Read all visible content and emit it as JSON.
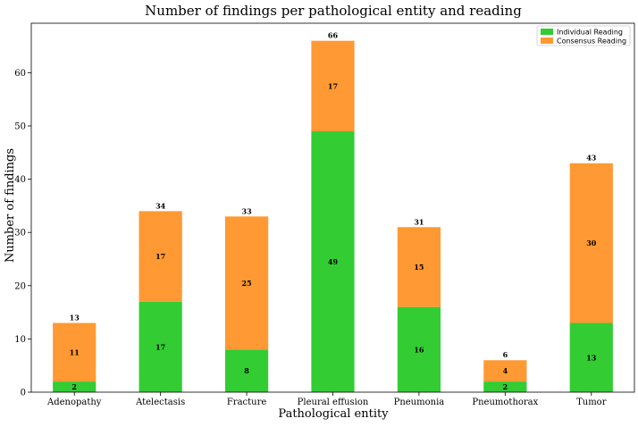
{
  "chart_data": {
    "type": "bar",
    "stacked": true,
    "title": "Number of findings per pathological entity and reading",
    "xlabel": "Pathological entity",
    "ylabel": "Number of findings",
    "categories": [
      "Adenopathy",
      "Atelectasis",
      "Fracture",
      "Pleural effusion",
      "Pneumonia",
      "Pneumothorax",
      "Tumor"
    ],
    "series": [
      {
        "name": "Individual Reading",
        "color": "#33cc33",
        "values": [
          2,
          17,
          8,
          49,
          16,
          2,
          13
        ]
      },
      {
        "name": "Consensus Reading",
        "color": "#ff9933",
        "values": [
          11,
          17,
          25,
          17,
          15,
          4,
          30
        ]
      }
    ],
    "totals": [
      13,
      34,
      33,
      66,
      31,
      6,
      43
    ],
    "ylim": [
      0,
      69.3
    ],
    "yticks": [
      0,
      10,
      20,
      30,
      40,
      50,
      60
    ],
    "grid": false,
    "legend": "top-right"
  }
}
